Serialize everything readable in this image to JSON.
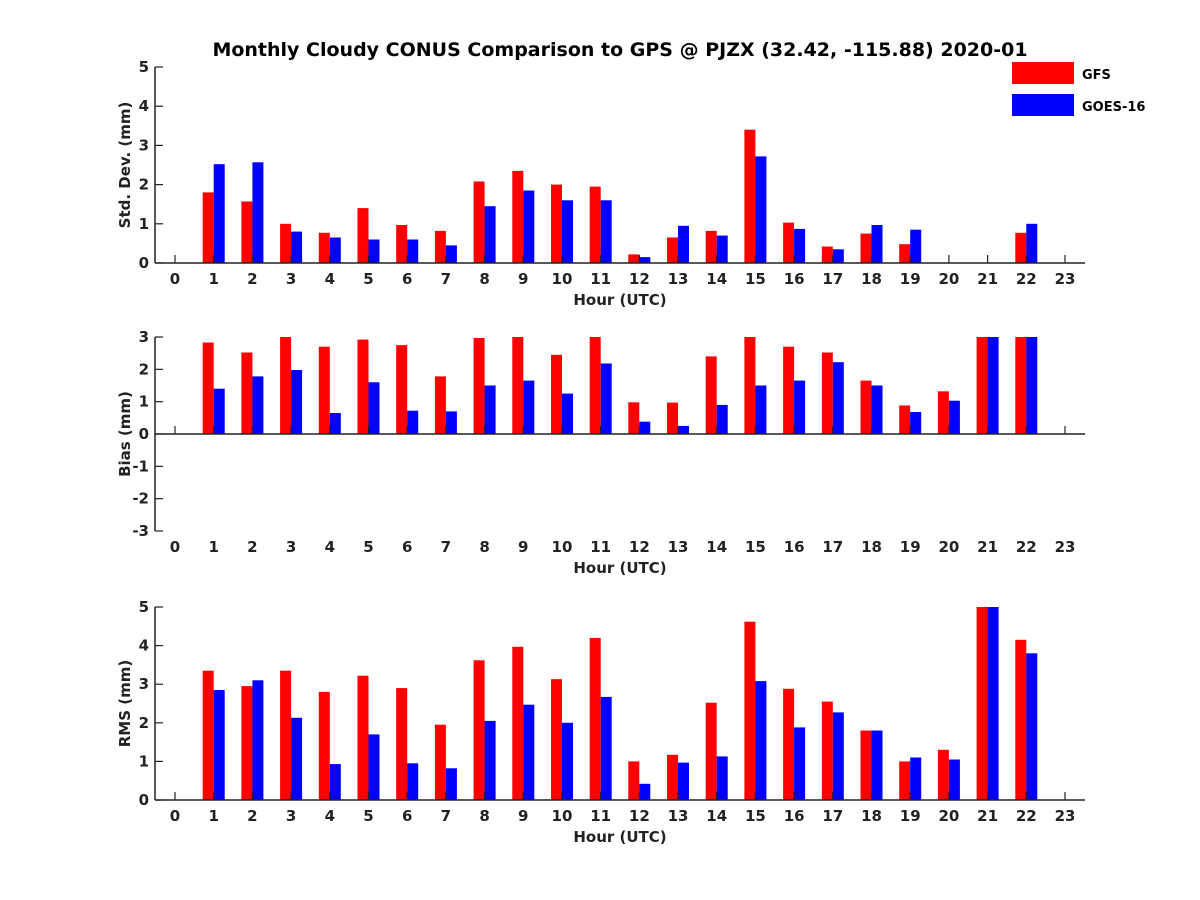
{
  "chart_data": {
    "type": "bar",
    "title": "Monthly Cloudy CONUS Comparison to GPS @ PJZX (32.42, -115.88) 2020-01",
    "categories": [
      "0",
      "1",
      "2",
      "3",
      "4",
      "5",
      "6",
      "7",
      "8",
      "9",
      "10",
      "11",
      "12",
      "13",
      "14",
      "15",
      "16",
      "17",
      "18",
      "19",
      "20",
      "21",
      "22",
      "23"
    ],
    "legend": {
      "position": "top-right",
      "entries": [
        {
          "name": "GFS",
          "color": "#ff0000"
        },
        {
          "name": "GOES-16",
          "color": "#0000ff"
        }
      ]
    },
    "subplots": [
      {
        "id": "std",
        "ylabel": "Std. Dev. (mm)",
        "xlabel": "Hour (UTC)",
        "ylim": [
          0,
          5
        ],
        "yticks": [
          "0",
          "1",
          "2",
          "3",
          "4",
          "5"
        ],
        "series": [
          {
            "name": "GFS",
            "values": [
              null,
              1.8,
              1.57,
              1.0,
              0.77,
              1.4,
              0.97,
              0.82,
              2.08,
              2.35,
              2.0,
              1.95,
              0.22,
              0.65,
              0.82,
              3.4,
              1.03,
              0.42,
              0.75,
              0.48,
              null,
              null,
              0.77,
              null
            ]
          },
          {
            "name": "GOES-16",
            "values": [
              null,
              2.52,
              2.57,
              0.8,
              0.65,
              0.6,
              0.6,
              0.45,
              1.45,
              1.85,
              1.6,
              1.6,
              0.15,
              0.95,
              0.7,
              2.72,
              0.87,
              0.35,
              0.97,
              0.85,
              null,
              null,
              1.0,
              null
            ]
          }
        ]
      },
      {
        "id": "bias",
        "ylabel": "Bias (mm)",
        "xlabel": "Hour (UTC)",
        "ylim": [
          -3,
          3
        ],
        "yticks": [
          "-3",
          "-2",
          "-1",
          "0",
          "1",
          "2",
          "3"
        ],
        "series": [
          {
            "name": "GFS",
            "values": [
              null,
              2.83,
              2.52,
              3.0,
              2.7,
              2.92,
              2.75,
              1.78,
              2.97,
              3.0,
              2.45,
              3.0,
              0.98,
              0.97,
              2.4,
              3.0,
              2.7,
              2.52,
              1.65,
              0.88,
              1.32,
              3.0,
              3.0,
              null
            ]
          },
          {
            "name": "GOES-16",
            "values": [
              null,
              1.4,
              1.78,
              1.98,
              0.65,
              1.6,
              0.72,
              0.7,
              1.5,
              1.65,
              1.25,
              2.18,
              0.38,
              0.25,
              0.9,
              1.5,
              1.65,
              2.22,
              1.5,
              0.68,
              1.03,
              3.0,
              3.0,
              null
            ]
          }
        ]
      },
      {
        "id": "rms",
        "ylabel": "RMS (mm)",
        "xlabel": "Hour (UTC)",
        "ylim": [
          0,
          5
        ],
        "yticks": [
          "0",
          "1",
          "2",
          "3",
          "4",
          "5"
        ],
        "series": [
          {
            "name": "GFS",
            "values": [
              null,
              3.35,
              2.95,
              3.35,
              2.8,
              3.22,
              2.9,
              1.95,
              3.62,
              3.97,
              3.13,
              4.2,
              1.0,
              1.17,
              2.52,
              4.62,
              2.88,
              2.55,
              1.8,
              1.0,
              1.3,
              5.0,
              4.15,
              null
            ]
          },
          {
            "name": "GOES-16",
            "values": [
              null,
              2.85,
              3.1,
              2.13,
              0.93,
              1.7,
              0.95,
              0.82,
              2.05,
              2.47,
              2.0,
              2.67,
              0.42,
              0.97,
              1.13,
              3.08,
              1.88,
              2.27,
              1.8,
              1.1,
              1.05,
              5.0,
              3.8,
              null
            ]
          }
        ]
      }
    ]
  }
}
